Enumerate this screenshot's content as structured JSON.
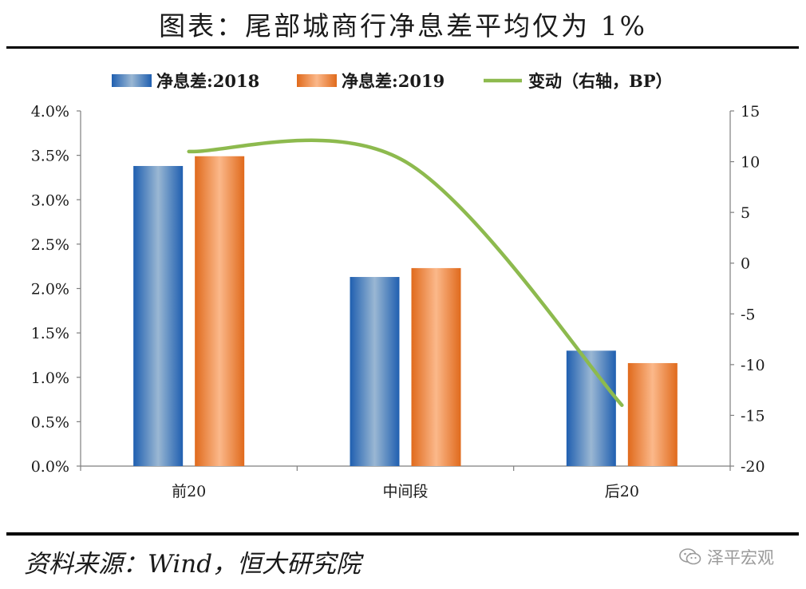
{
  "header": {
    "title": "图表：尾部城商行净息差平均仅为 1%"
  },
  "chart_data": {
    "type": "bar",
    "categories": [
      "前20",
      "中间段",
      "后20"
    ],
    "series": [
      {
        "name": "净息差:2018",
        "values": [
          3.38,
          2.13,
          1.3
        ],
        "axis": "left",
        "kind": "bar"
      },
      {
        "name": "净息差:2019",
        "values": [
          3.49,
          2.23,
          1.16
        ],
        "axis": "left",
        "kind": "bar"
      },
      {
        "name": "变动（右轴，BP）",
        "values": [
          11,
          10,
          -14
        ],
        "axis": "right",
        "kind": "line"
      }
    ],
    "y_left": {
      "min": 0,
      "max": 4.0,
      "step": 0.5,
      "ticks": [
        "0.0%",
        "0.5%",
        "1.0%",
        "1.5%",
        "2.0%",
        "2.5%",
        "3.0%",
        "3.5%",
        "4.0%"
      ]
    },
    "y_right": {
      "min": -20,
      "max": 15,
      "step": 5,
      "ticks": [
        "-20",
        "-15",
        "-10",
        "-5",
        "0",
        "5",
        "10",
        "15"
      ]
    },
    "legend": {
      "position": "top"
    },
    "grid": false,
    "colors": {
      "bar2018": "#2e6fb8",
      "bar2019": "#ef7b2c",
      "line": "#8dba4e"
    }
  },
  "footer": {
    "source": "资料来源：Wind，恒大研究院",
    "brand": "泽平宏观"
  }
}
